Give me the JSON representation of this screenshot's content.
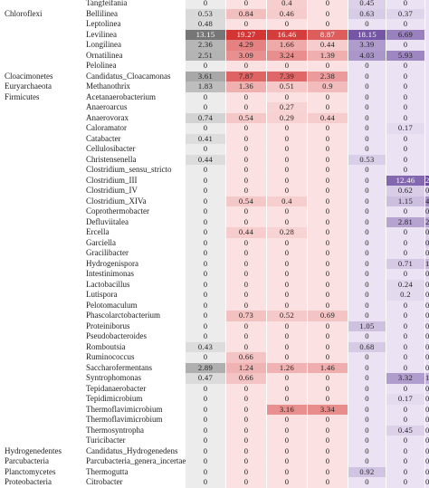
{
  "columns": [
    "phylum",
    "genus",
    "v1",
    "v2",
    "v3",
    "v4",
    "v5",
    "v6",
    "v7"
  ],
  "rows": [
    {
      "phylum": "",
      "genus": "Tangfeifania",
      "values": [
        "0",
        "0",
        "0.4",
        "0",
        "0.45",
        "0",
        ""
      ]
    },
    {
      "phylum": "Chloroflexi",
      "genus": "Bellilinea",
      "values": [
        "0.53",
        "0.84",
        "0.46",
        "0",
        "0.63",
        "0.37",
        ""
      ]
    },
    {
      "phylum": "",
      "genus": "Leptolinea",
      "values": [
        "0.48",
        "0",
        "0",
        "0",
        "0",
        "0",
        ""
      ]
    },
    {
      "phylum": "",
      "genus": "Levilinea",
      "values": [
        "13.15",
        "19.27",
        "16.46",
        "8.87",
        "18.15",
        "6.69",
        ""
      ]
    },
    {
      "phylum": "",
      "genus": "Longilinea",
      "values": [
        "2.36",
        "4.29",
        "1.66",
        "0.44",
        "3.39",
        "0",
        ""
      ]
    },
    {
      "phylum": "",
      "genus": "Ornatilinea",
      "values": [
        "2.51",
        "3.09",
        "3.24",
        "1.39",
        "4.03",
        "5.93",
        ""
      ]
    },
    {
      "phylum": "",
      "genus": "Pelolinea",
      "values": [
        "0",
        "0",
        "0",
        "0",
        "0",
        "0",
        ""
      ]
    },
    {
      "phylum": "Cloacimonetes",
      "genus": "Candidatus_Cloacamonas",
      "values": [
        "3.61",
        "7.87",
        "7.39",
        "2.38",
        "0",
        "0",
        ""
      ]
    },
    {
      "phylum": "Euryarchaeota",
      "genus": "Methanothrix",
      "values": [
        "1.83",
        "1.36",
        "0.51",
        "0.9",
        "0",
        "0",
        ""
      ]
    },
    {
      "phylum": "Firmicutes",
      "genus": "Acetanaerobacterium",
      "values": [
        "0",
        "0",
        "0",
        "0",
        "0",
        "0",
        ""
      ]
    },
    {
      "phylum": "",
      "genus": "Anaeroarcus",
      "values": [
        "0",
        "0",
        "0.27",
        "0",
        "0",
        "0",
        ""
      ]
    },
    {
      "phylum": "",
      "genus": "Anaerovorax",
      "values": [
        "0.74",
        "0.54",
        "0.29",
        "0.44",
        "0",
        "0",
        ""
      ]
    },
    {
      "phylum": "",
      "genus": "Caloramator",
      "values": [
        "0",
        "0",
        "0",
        "0",
        "0",
        "0.17",
        ""
      ]
    },
    {
      "phylum": "",
      "genus": "Catabacter",
      "values": [
        "0.41",
        "0",
        "0",
        "0",
        "0",
        "0",
        ""
      ]
    },
    {
      "phylum": "",
      "genus": "Cellulosibacter",
      "values": [
        "0",
        "0",
        "0",
        "0",
        "0",
        "0",
        ""
      ]
    },
    {
      "phylum": "",
      "genus": "Christensenella",
      "values": [
        "0.44",
        "0",
        "0",
        "0",
        "0.53",
        "0",
        ""
      ]
    },
    {
      "phylum": "",
      "genus": "Clostridium_sensu_stricto",
      "values": [
        "0",
        "0",
        "0",
        "0",
        "0",
        "0",
        ""
      ]
    },
    {
      "phylum": "",
      "genus": "Clostridium_III",
      "values": [
        "0",
        "0",
        "0",
        "0",
        "0",
        "12.46",
        "22.89"
      ]
    },
    {
      "phylum": "",
      "genus": "Clostridium_IV",
      "values": [
        "0",
        "0",
        "0",
        "0",
        "0",
        "0.62",
        "0.44"
      ]
    },
    {
      "phylum": "",
      "genus": "Clostridium_XIVa",
      "values": [
        "0",
        "0.54",
        "0.4",
        "0",
        "0",
        "1.15",
        "4.57"
      ]
    },
    {
      "phylum": "",
      "genus": "Coprothermobacter",
      "values": [
        "0",
        "0",
        "0",
        "0",
        "0",
        "0",
        "0.78"
      ]
    },
    {
      "phylum": "",
      "genus": "Defluviitalea",
      "values": [
        "0",
        "0",
        "0",
        "0",
        "0",
        "2.81",
        "2.82"
      ]
    },
    {
      "phylum": "",
      "genus": "Ercella",
      "values": [
        "0",
        "0.44",
        "0.28",
        "0",
        "0",
        "0",
        "0.51"
      ]
    },
    {
      "phylum": "",
      "genus": "Garciella",
      "values": [
        "0",
        "0",
        "0",
        "0",
        "0",
        "0",
        "0.57"
      ]
    },
    {
      "phylum": "",
      "genus": "Gracilibacter",
      "values": [
        "0",
        "0",
        "0",
        "0",
        "0",
        "0",
        "0.2"
      ]
    },
    {
      "phylum": "",
      "genus": "Hydrogenispora",
      "values": [
        "0",
        "0",
        "0",
        "0",
        "0",
        "0.71",
        "1.54"
      ]
    },
    {
      "phylum": "",
      "genus": "Intestinimonas",
      "values": [
        "0",
        "0",
        "0",
        "0",
        "0",
        "0",
        "0.2"
      ]
    },
    {
      "phylum": "",
      "genus": "Lactobacillus",
      "values": [
        "0",
        "0",
        "0",
        "0",
        "0",
        "0.24",
        "0"
      ]
    },
    {
      "phylum": "",
      "genus": "Lutispora",
      "values": [
        "0",
        "0",
        "0",
        "0",
        "0",
        "0.2",
        "0"
      ]
    },
    {
      "phylum": "",
      "genus": "Pelotomaculum",
      "values": [
        "0",
        "0",
        "0",
        "0",
        "0",
        "0",
        "0"
      ]
    },
    {
      "phylum": "",
      "genus": "Phascolarctobacterium",
      "values": [
        "0",
        "0.73",
        "0.52",
        "0.69",
        "0",
        "0",
        "0"
      ]
    },
    {
      "phylum": "",
      "genus": "Proteiniborus",
      "values": [
        "0",
        "0",
        "0",
        "0",
        "1.05",
        "0",
        "0"
      ]
    },
    {
      "phylum": "",
      "genus": "Pseudobacteroides",
      "values": [
        "0",
        "0",
        "0",
        "0",
        "0",
        "0",
        "0"
      ]
    },
    {
      "phylum": "",
      "genus": "Romboutsia",
      "values": [
        "0.43",
        "0",
        "0",
        "0",
        "0.68",
        "0",
        "0"
      ]
    },
    {
      "phylum": "",
      "genus": "Ruminococcus",
      "values": [
        "0",
        "0.66",
        "0",
        "0",
        "0",
        "0",
        "0"
      ]
    },
    {
      "phylum": "",
      "genus": "Saccharofermentans",
      "values": [
        "2.89",
        "1.24",
        "1.26",
        "1.46",
        "0",
        "0",
        "0"
      ]
    },
    {
      "phylum": "",
      "genus": "Syntrophomonas",
      "values": [
        "0.47",
        "0.66",
        "0",
        "0",
        "0",
        "3.32",
        "1.77"
      ]
    },
    {
      "phylum": "",
      "genus": "Tepidanaerobacter",
      "values": [
        "0",
        "0",
        "0",
        "0",
        "0",
        "0",
        "0.23"
      ]
    },
    {
      "phylum": "",
      "genus": "Tepidimicrobium",
      "values": [
        "0",
        "0",
        "0",
        "0",
        "0",
        "0.17",
        "0"
      ]
    },
    {
      "phylum": "",
      "genus": "Thermoflavimicrobium",
      "values": [
        "0",
        "0",
        "3.16",
        "3.34",
        "0",
        "0",
        "0"
      ]
    },
    {
      "phylum": "",
      "genus": "Thermoflavimicrobium",
      "values": [
        "0",
        "0",
        "0",
        "0",
        "0",
        "0",
        "0"
      ]
    },
    {
      "phylum": "",
      "genus": "Thermosyntropha",
      "values": [
        "0",
        "0",
        "0",
        "0",
        "0",
        "0.45",
        "0"
      ]
    },
    {
      "phylum": "",
      "genus": "Turicibacter",
      "values": [
        "0",
        "0",
        "0",
        "0",
        "0",
        "0",
        "0"
      ]
    },
    {
      "phylum": "Hydrogenedentes",
      "genus": "Candidatus_Hydrogenedens",
      "values": [
        "0",
        "0",
        "0",
        "0",
        "0",
        "0",
        "0"
      ]
    },
    {
      "phylum": "Parcubacteria",
      "genus": "Parcubacteria_genera_incertae_sedis",
      "values": [
        "0",
        "0",
        "0",
        "0",
        "0",
        "0",
        "0"
      ]
    },
    {
      "phylum": "Planctomycetes",
      "genus": "Thermogutta",
      "values": [
        "0",
        "0",
        "0",
        "0",
        "0.92",
        "0",
        "0"
      ]
    },
    {
      "phylum": "Proteobacteria",
      "genus": "Citrobacter",
      "values": [
        "0",
        "0",
        "0",
        "0",
        "0",
        "0",
        "0"
      ]
    }
  ],
  "palette": {
    "gray_base": "#ececec",
    "red_base": "#fbe1e1",
    "purple_base": "#ebe3f3",
    "gray_dark": "#5e5e5e",
    "red_dark": "#d12a2a",
    "purple_dark": "#6c4ba0"
  }
}
